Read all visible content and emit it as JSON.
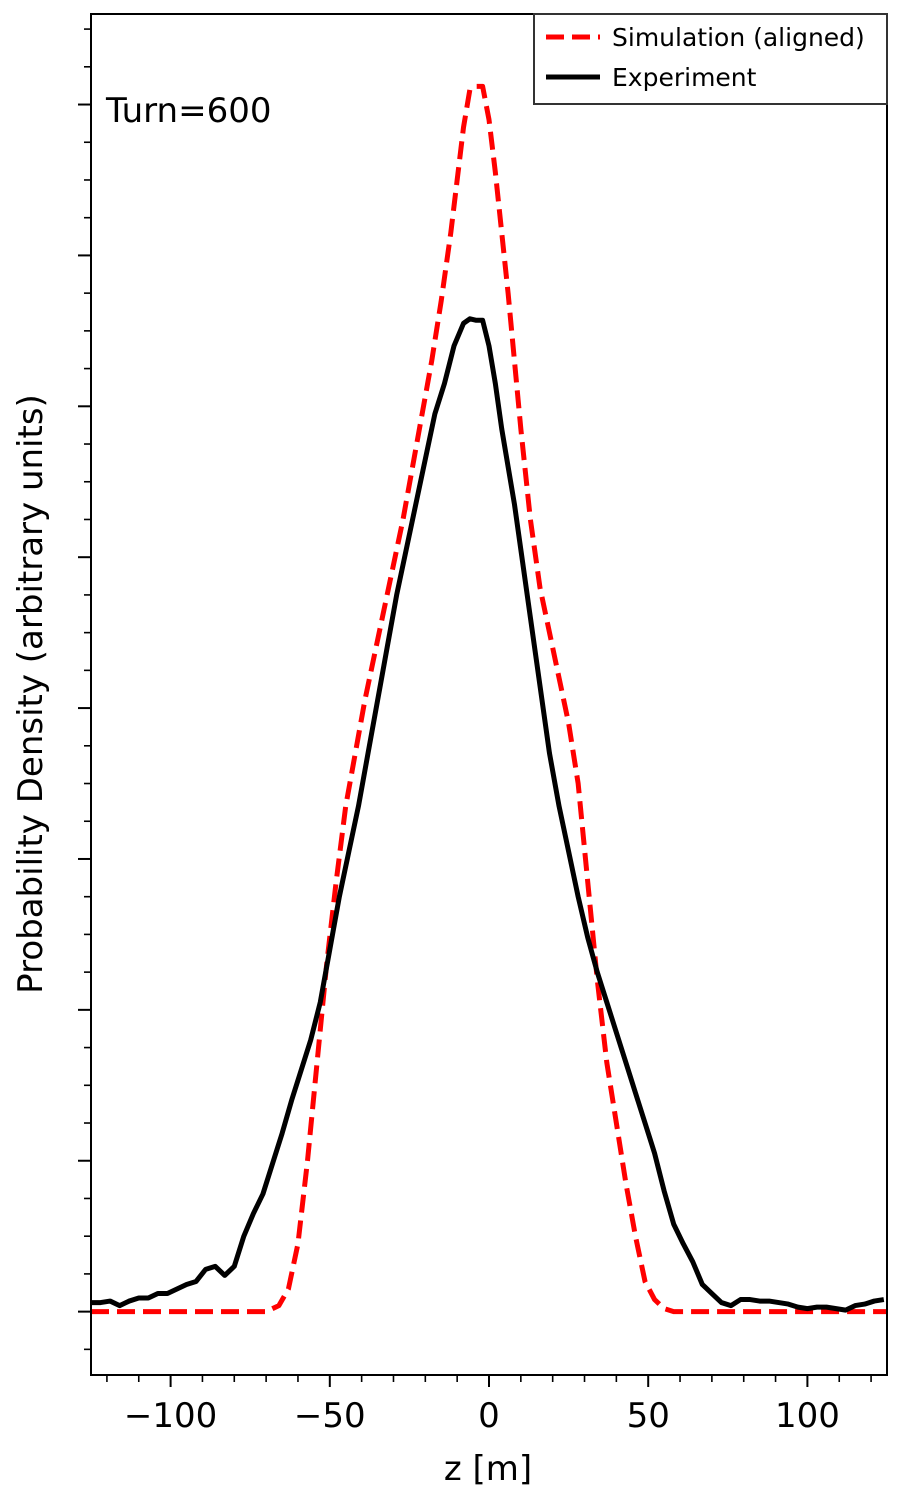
{
  "chart_data": {
    "type": "line",
    "title": "",
    "annotation": "Turn=600",
    "xlabel": "z [m]",
    "ylabel": "Probability Density (arbitrary units)",
    "xlim": [
      -125,
      125
    ],
    "ylim": [
      -0.42,
      8.6
    ],
    "x_ticks": [
      -100,
      -50,
      0,
      50,
      100
    ],
    "x_tick_labels": [
      "−100",
      "−50",
      "0",
      "50",
      "100"
    ],
    "y_ticks_major": [
      0,
      1,
      2,
      3,
      4,
      5,
      6,
      7,
      8
    ],
    "y_tick_labels_shown": false,
    "grid": false,
    "legend": {
      "placement": "top-right"
    },
    "series": [
      {
        "name": "Simulation (aligned)",
        "color": "#ff0000",
        "style": "dashed",
        "x": [
          -125,
          -70,
          -66,
          -63,
          -60,
          -57,
          -54,
          -51,
          -48,
          -45,
          -42,
          -39,
          -36,
          -33,
          -30,
          -27,
          -24,
          -21,
          -18,
          -15,
          -12,
          -10,
          -8,
          -6,
          -4,
          -2,
          0,
          2,
          4,
          6,
          8,
          10,
          13,
          16,
          19,
          22,
          25,
          28,
          31,
          34,
          37,
          40,
          43,
          46,
          49,
          52,
          55,
          58,
          61,
          125
        ],
        "values": [
          0,
          0,
          0.04,
          0.15,
          0.45,
          1.0,
          1.65,
          2.3,
          2.85,
          3.35,
          3.7,
          4.05,
          4.35,
          4.65,
          4.95,
          5.25,
          5.6,
          5.95,
          6.3,
          6.7,
          7.15,
          7.5,
          7.85,
          8.1,
          8.12,
          8.12,
          7.9,
          7.55,
          7.15,
          6.75,
          6.3,
          5.85,
          5.25,
          4.8,
          4.5,
          4.2,
          3.9,
          3.5,
          2.85,
          2.2,
          1.65,
          1.25,
          0.85,
          0.5,
          0.2,
          0.08,
          0.02,
          0,
          0,
          0
        ]
      },
      {
        "name": "Experiment",
        "color": "#000000",
        "style": "solid",
        "x": [
          -125,
          -122,
          -119,
          -116,
          -113,
          -110,
          -107,
          -104,
          -101,
          -98,
          -95,
          -92,
          -89,
          -86,
          -83,
          -80,
          -77,
          -74,
          -71,
          -68,
          -65,
          -62,
          -59,
          -56,
          -53,
          -50,
          -47,
          -44,
          -41,
          -38,
          -35,
          -32,
          -29,
          -26,
          -23,
          -20,
          -17,
          -14,
          -11,
          -8,
          -6,
          -4,
          -2,
          0,
          2,
          4,
          6,
          8,
          10,
          13,
          16,
          19,
          22,
          25,
          28,
          31,
          34,
          37,
          40,
          43,
          46,
          49,
          52,
          55,
          58,
          61,
          64,
          67,
          70,
          73,
          76,
          79,
          82,
          85,
          88,
          91,
          94,
          97,
          100,
          103,
          106,
          109,
          112,
          115,
          118,
          121,
          124
        ],
        "values": [
          0.06,
          0.06,
          0.07,
          0.04,
          0.07,
          0.09,
          0.09,
          0.12,
          0.12,
          0.15,
          0.18,
          0.2,
          0.28,
          0.3,
          0.24,
          0.3,
          0.5,
          0.65,
          0.78,
          0.98,
          1.18,
          1.4,
          1.6,
          1.8,
          2.05,
          2.4,
          2.75,
          3.05,
          3.35,
          3.7,
          4.05,
          4.4,
          4.75,
          5.05,
          5.35,
          5.65,
          5.95,
          6.15,
          6.4,
          6.55,
          6.58,
          6.57,
          6.57,
          6.4,
          6.15,
          5.85,
          5.6,
          5.35,
          5.05,
          4.6,
          4.15,
          3.7,
          3.35,
          3.05,
          2.75,
          2.48,
          2.25,
          2.05,
          1.85,
          1.65,
          1.45,
          1.25,
          1.05,
          0.8,
          0.58,
          0.45,
          0.33,
          0.18,
          0.12,
          0.06,
          0.04,
          0.08,
          0.08,
          0.07,
          0.07,
          0.06,
          0.05,
          0.03,
          0.02,
          0.03,
          0.03,
          0.02,
          0.01,
          0.04,
          0.05,
          0.07,
          0.08
        ]
      }
    ]
  }
}
